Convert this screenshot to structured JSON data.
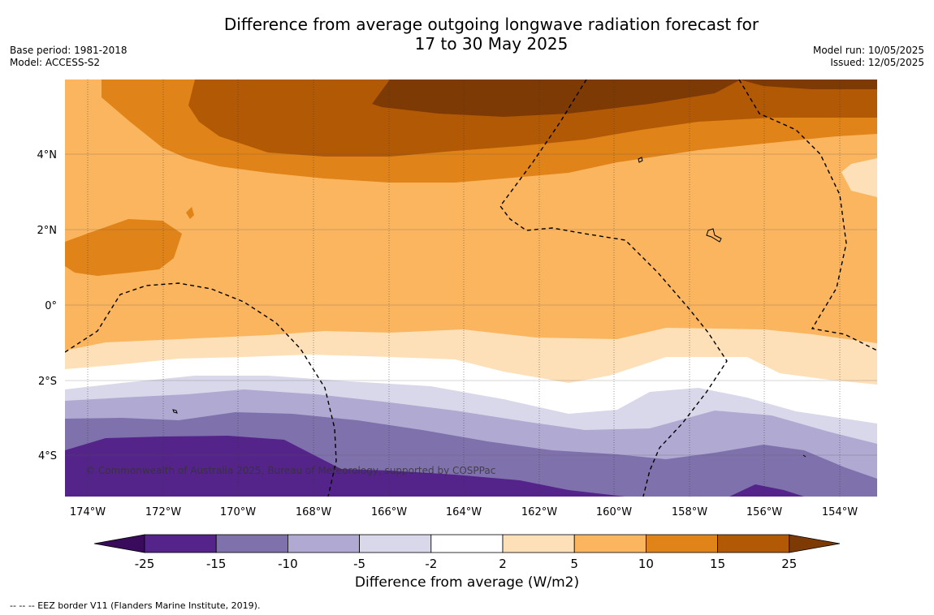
{
  "title_line1": "Difference from average outgoing longwave radiation forecast for",
  "title_line2": "17 to 30 May 2025",
  "base_period": "Base period: 1981-2018",
  "model": "Model: ACCESS-S2",
  "model_run": "Model run: 10/05/2025",
  "issued": "Issued: 12/05/2025",
  "copyright": "© Commonwealth of Australia 2025, Bureau of Meteorology, supported by COSPPac",
  "footnote": "-- -- -- EEZ border V11 (Flanders Marine Institute, 2019).",
  "lon_labels": [
    "174°W",
    "172°W",
    "170°W",
    "168°W",
    "166°W",
    "164°W",
    "162°W",
    "160°W",
    "158°W",
    "156°W",
    "154°W"
  ],
  "lat_labels": [
    "4°N",
    "2°N",
    "0°",
    "2°S",
    "4°S"
  ],
  "colorbar": {
    "title": "Difference from average (W/m2)",
    "ticks": [
      "-25",
      "-15",
      "-10",
      "-5",
      "-2",
      "2",
      "5",
      "10",
      "15",
      "25"
    ],
    "colors": {
      "lt_-25": "#3a0a5c",
      "-25_-15": "#54248a",
      "-15_-10": "#7f71ac",
      "-10_-5": "#b0a9d2",
      "-5_-2": "#d8d8ea",
      "-2_2": "#ffffff",
      "2_5": "#fde0b8",
      "5_10": "#fab55e",
      "10_15": "#e08318",
      "15_25": "#b25906",
      "gt_25": "#7e3a05"
    }
  }
}
